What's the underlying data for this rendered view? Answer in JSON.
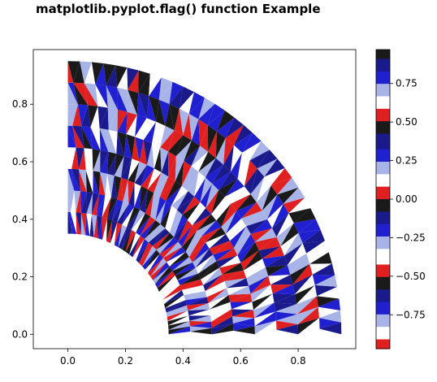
{
  "title": "matplotlib.pyplot.flag() function Example",
  "chart_data": {
    "type": "heatmap",
    "plot_kind": "tripcolor",
    "colormap": "flag-like (blue-white-red bands, periodic)",
    "title": "matplotlib.pyplot.flag() function Example",
    "xlabel": "",
    "ylabel": "",
    "xlim": [
      -0.12,
      1.0
    ],
    "ylim": [
      -0.05,
      0.99
    ],
    "x_ticks": [
      0.0,
      0.2,
      0.4,
      0.6,
      0.8
    ],
    "x_tick_labels": [
      "0.0",
      "0.2",
      "0.4",
      "0.6",
      "0.8"
    ],
    "y_ticks": [
      0.0,
      0.2,
      0.4,
      0.6,
      0.8
    ],
    "y_tick_labels": [
      "0.0",
      "0.2",
      "0.4",
      "0.6",
      "0.8"
    ],
    "mesh": {
      "shape": "annular sector",
      "inner_radius": 0.35,
      "outer_radius": 0.95,
      "angle_range_deg": [
        0,
        90
      ],
      "rings": 8,
      "angles_per_ring": 36
    },
    "colorbar": {
      "range": [
        -0.97,
        0.97
      ],
      "ticks": [
        0.75,
        0.5,
        0.25,
        0.0,
        -0.25,
        -0.5,
        -0.75
      ],
      "tick_labels": [
        "0.75",
        "0.50",
        "0.25",
        "0.00",
        "−0.25",
        "−0.50",
        "−0.75"
      ]
    },
    "grid": false,
    "legend": "none"
  },
  "colors": {
    "band_dark": "#1a1a8c",
    "band_blue": "#2020d0",
    "band_light": "#a8b4e8",
    "band_white": "#ffffff",
    "band_red": "#e02020",
    "band_black": "#1a1a1a"
  }
}
